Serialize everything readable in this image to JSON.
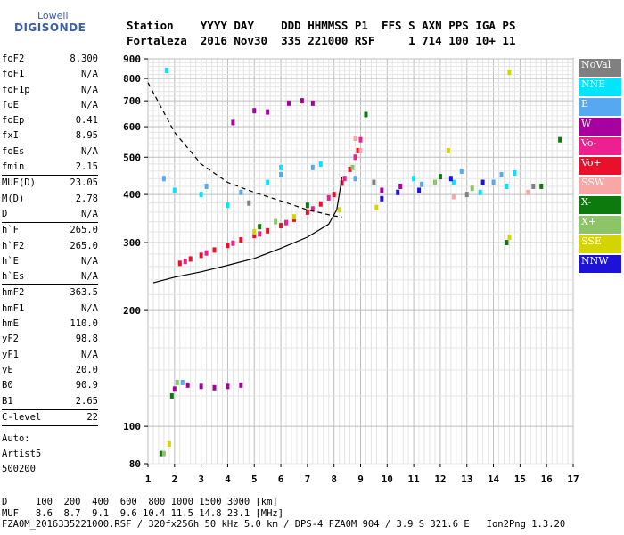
{
  "logo": {
    "line1": "Lowell",
    "line2": "DIGISONDE"
  },
  "header": {
    "line1": "Station    YYYY DAY    DDD HHMMSS P1  FFS S AXN PPS IGA PS",
    "line2": "Fortaleza  2016 Nov30  335 221000 RSF     1 714 100 10+ 11"
  },
  "params": [
    {
      "label": "foF2",
      "value": "8.300"
    },
    {
      "label": "foF1",
      "value": "N/A"
    },
    {
      "label": "foF1p",
      "value": "N/A"
    },
    {
      "label": "foE",
      "value": "N/A"
    },
    {
      "label": "foEp",
      "value": "0.41"
    },
    {
      "label": "fxI",
      "value": "8.95"
    },
    {
      "label": "foEs",
      "value": "N/A"
    },
    {
      "label": "fmin",
      "value": "2.15"
    },
    {
      "sep": true
    },
    {
      "label": "MUF(D)",
      "value": "23.05"
    },
    {
      "label": "M(D)",
      "value": "2.78"
    },
    {
      "label": "D",
      "value": "N/A"
    },
    {
      "sep": true
    },
    {
      "label": "h`F",
      "value": "265.0"
    },
    {
      "label": "h`F2",
      "value": "265.0"
    },
    {
      "label": "h`E",
      "value": "N/A"
    },
    {
      "label": "h`Es",
      "value": "N/A"
    },
    {
      "sep": true
    },
    {
      "label": "hmF2",
      "value": "363.5"
    },
    {
      "label": "hmF1",
      "value": "N/A"
    },
    {
      "label": "hmE",
      "value": "110.0"
    },
    {
      "label": "yF2",
      "value": "98.8"
    },
    {
      "label": "yF1",
      "value": "N/A"
    },
    {
      "label": "yE",
      "value": "20.0"
    },
    {
      "label": "B0",
      "value": "90.9"
    },
    {
      "label": "B1",
      "value": "2.65"
    },
    {
      "sep": true
    },
    {
      "label": "C-level",
      "value": "22"
    },
    {
      "sep": true
    }
  ],
  "autoscaling": {
    "line1": "Auto:",
    "line2": "Artist5",
    "line3": "500200"
  },
  "muf_table": {
    "line1": "D     100  200  400  600  800 1000 1500 3000 [km]",
    "line2": "MUF   8.6  8.7  9.1  9.6 10.4 11.5 14.8 23.1 [MHz]"
  },
  "footer": "FZA0M_2016335221000.RSF / 320fx256h 50 kHz 5.0 km / DPS-4 FZA0M 904 / 3.9 S 321.6 E   Ion2Png 1.3.20",
  "legend": [
    {
      "label": "NoVal",
      "color": "#808080"
    },
    {
      "label": "NNE",
      "color": "#00e5ff"
    },
    {
      "label": "E",
      "color": "#56a8f0"
    },
    {
      "label": "W",
      "color": "#a8009e"
    },
    {
      "label": "Vo-",
      "color": "#ee1f8e"
    },
    {
      "label": "Vo+",
      "color": "#ea0f2b"
    },
    {
      "label": "SSW",
      "color": "#f8a6a6"
    },
    {
      "label": "X-",
      "color": "#0c7a0c"
    },
    {
      "label": "X+",
      "color": "#8ec468"
    },
    {
      "label": "SSE",
      "color": "#d4d400"
    },
    {
      "label": "NNW",
      "color": "#1c12d8"
    }
  ],
  "chart_data": {
    "type": "scatter",
    "xlim": [
      1,
      17
    ],
    "ylim": [
      80,
      900
    ],
    "y_scale": "log",
    "x_ticks": [
      1,
      2,
      3,
      4,
      5,
      6,
      7,
      8,
      9,
      10,
      11,
      12,
      13,
      14,
      15,
      16,
      17
    ],
    "y_ticks": [
      80,
      100,
      200,
      300,
      400,
      500,
      600,
      700,
      800,
      900
    ],
    "grid": true,
    "series": [
      {
        "name": "Vo+",
        "color": "#ea0f2b",
        "values": [
          [
            2.2,
            265
          ],
          [
            2.6,
            272
          ],
          [
            3.0,
            278
          ],
          [
            3.5,
            287
          ],
          [
            4.0,
            295
          ],
          [
            4.5,
            305
          ],
          [
            5.0,
            313
          ],
          [
            5.5,
            322
          ],
          [
            6.0,
            332
          ],
          [
            6.5,
            345
          ],
          [
            7.0,
            360
          ],
          [
            7.5,
            378
          ],
          [
            8.0,
            400
          ],
          [
            8.3,
            428
          ],
          [
            8.6,
            465
          ],
          [
            8.9,
            520
          ]
        ]
      },
      {
        "name": "Vo-",
        "color": "#ee1f8e",
        "values": [
          [
            2.4,
            268
          ],
          [
            3.2,
            282
          ],
          [
            4.2,
            299
          ],
          [
            5.2,
            316
          ],
          [
            6.2,
            338
          ],
          [
            7.2,
            367
          ],
          [
            7.8,
            392
          ],
          [
            8.4,
            440
          ],
          [
            8.8,
            500
          ],
          [
            9.0,
            555
          ]
        ]
      },
      {
        "name": "W",
        "color": "#a8009e",
        "values": [
          [
            2.0,
            125
          ],
          [
            2.5,
            128
          ],
          [
            3.0,
            127
          ],
          [
            3.5,
            126
          ],
          [
            4.0,
            127
          ],
          [
            4.5,
            128
          ],
          [
            4.2,
            615
          ],
          [
            5.0,
            660
          ],
          [
            5.5,
            655
          ],
          [
            6.3,
            690
          ],
          [
            6.8,
            700
          ],
          [
            7.2,
            690
          ],
          [
            9.8,
            410
          ],
          [
            10.5,
            420
          ]
        ]
      },
      {
        "name": "NNE",
        "color": "#00e5ff",
        "values": [
          [
            1.7,
            840
          ],
          [
            2.0,
            410
          ],
          [
            3.0,
            400
          ],
          [
            4.0,
            375
          ],
          [
            5.5,
            430
          ],
          [
            6.0,
            470
          ],
          [
            7.5,
            480
          ],
          [
            11.0,
            440
          ],
          [
            12.5,
            430
          ],
          [
            13.5,
            405
          ],
          [
            14.5,
            420
          ],
          [
            14.8,
            455
          ]
        ]
      },
      {
        "name": "E",
        "color": "#56a8f0",
        "values": [
          [
            1.6,
            440
          ],
          [
            2.3,
            130
          ],
          [
            3.2,
            420
          ],
          [
            4.5,
            405
          ],
          [
            6.0,
            450
          ],
          [
            7.2,
            470
          ],
          [
            8.8,
            440
          ],
          [
            11.3,
            425
          ],
          [
            12.8,
            460
          ],
          [
            14.0,
            430
          ],
          [
            14.3,
            450
          ]
        ]
      },
      {
        "name": "X-",
        "color": "#0c7a0c",
        "values": [
          [
            1.5,
            85
          ],
          [
            1.9,
            120
          ],
          [
            5.2,
            330
          ],
          [
            7.0,
            375
          ],
          [
            9.2,
            645
          ],
          [
            12.0,
            445
          ],
          [
            14.5,
            300
          ],
          [
            15.8,
            420
          ],
          [
            16.5,
            555
          ]
        ]
      },
      {
        "name": "X+",
        "color": "#8ec468",
        "values": [
          [
            1.6,
            85
          ],
          [
            2.1,
            130
          ],
          [
            5.8,
            340
          ],
          [
            8.7,
            470
          ],
          [
            11.8,
            430
          ],
          [
            13.2,
            415
          ]
        ]
      },
      {
        "name": "SSW",
        "color": "#f8a6a6",
        "values": [
          [
            8.8,
            560
          ],
          [
            9.0,
            520
          ],
          [
            12.5,
            395
          ],
          [
            15.3,
            405
          ]
        ]
      },
      {
        "name": "SSE",
        "color": "#d4d400",
        "values": [
          [
            1.8,
            90
          ],
          [
            5.0,
            320
          ],
          [
            6.5,
            350
          ],
          [
            8.2,
            365
          ],
          [
            9.6,
            370
          ],
          [
            12.3,
            520
          ],
          [
            14.6,
            830
          ],
          [
            14.6,
            310
          ]
        ]
      },
      {
        "name": "NNW",
        "color": "#1c12d8",
        "values": [
          [
            9.8,
            390
          ],
          [
            10.4,
            405
          ],
          [
            11.2,
            410
          ],
          [
            12.4,
            440
          ],
          [
            13.6,
            430
          ]
        ]
      },
      {
        "name": "NoVal",
        "color": "#808080",
        "values": [
          [
            4.8,
            380
          ],
          [
            9.5,
            430
          ],
          [
            13.0,
            400
          ],
          [
            15.5,
            420
          ]
        ]
      }
    ],
    "profile_curve": [
      [
        1.2,
        236
      ],
      [
        2,
        244
      ],
      [
        3,
        252
      ],
      [
        4,
        262
      ],
      [
        5,
        273
      ],
      [
        6,
        290
      ],
      [
        7,
        310
      ],
      [
        7.8,
        335
      ],
      [
        8.1,
        365
      ],
      [
        8.25,
        420
      ],
      [
        8.3,
        445
      ]
    ],
    "virtual_height_curve": [
      [
        1.0,
        780
      ],
      [
        2.0,
        580
      ],
      [
        3.0,
        480
      ],
      [
        4.0,
        430
      ],
      [
        5.0,
        405
      ],
      [
        6.0,
        385
      ],
      [
        7.0,
        365
      ],
      [
        8.0,
        352
      ],
      [
        8.3,
        350
      ]
    ]
  }
}
